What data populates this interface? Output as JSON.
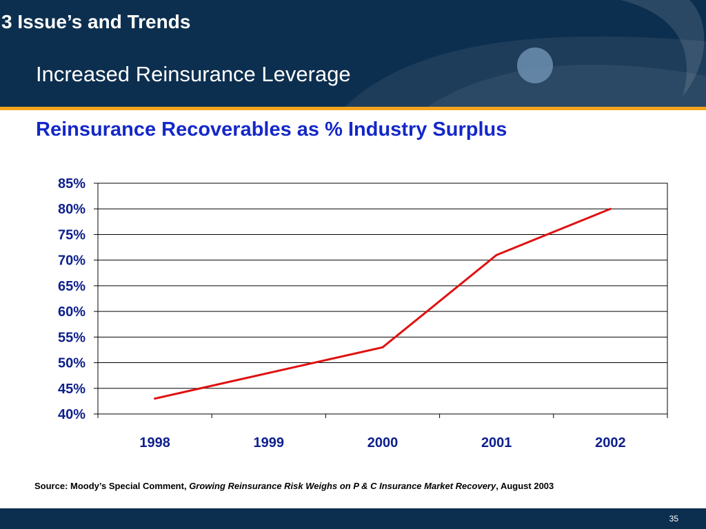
{
  "slide": {
    "section_title": "3 Issue’s and Trends",
    "subtitle": "Increased Reinsurance Leverage",
    "chart_title": "Reinsurance Recoverables as % Industry Surplus",
    "page_number": "35"
  },
  "source": {
    "prefix": "Source: Moody’s Special Comment, ",
    "publication": "Growing Reinsurance Risk Weighs on P & C Insurance Market Recovery",
    "suffix": ",  August 2003"
  },
  "colors": {
    "header_bg": "#0d2f4f",
    "accent": "#f2a51c",
    "title_blue": "#1428c8",
    "axis_text": "#0d1f8c",
    "line": "#e01010"
  },
  "chart_data": {
    "type": "line",
    "title": "Reinsurance Recoverables as % Industry Surplus",
    "categories": [
      "1998",
      "1999",
      "2000",
      "2001",
      "2002"
    ],
    "series": [
      {
        "values": [
          43,
          48,
          53,
          71,
          80
        ]
      }
    ],
    "ylim": [
      40,
      85
    ],
    "ytick_step": 5,
    "ytick_labels": [
      "40%",
      "45%",
      "50%",
      "55%",
      "60%",
      "65%",
      "70%",
      "75%",
      "80%",
      "85%"
    ],
    "xlabel": "",
    "ylabel": "",
    "grid": true,
    "legend": "none"
  }
}
